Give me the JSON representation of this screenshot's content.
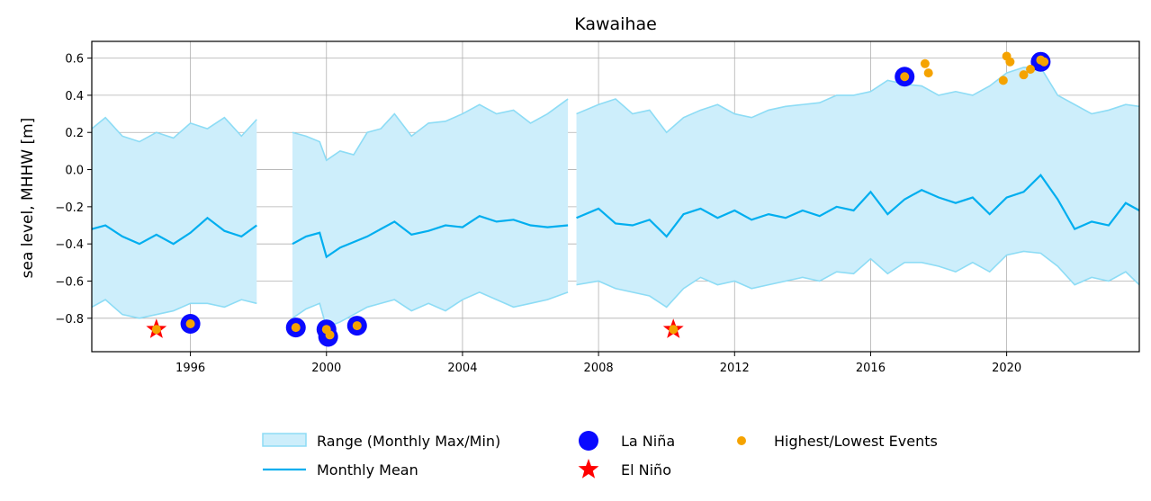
{
  "chart_data": {
    "type": "line",
    "title": "Kawaihae",
    "xlabel": "",
    "ylabel": "sea level, MHHW [m]",
    "xlim": [
      1993.1,
      2023.9
    ],
    "ylim": [
      -0.98,
      0.69
    ],
    "xticks": [
      1996,
      2000,
      2004,
      2008,
      2012,
      2016,
      2020
    ],
    "yticks": [
      0.6,
      0.4,
      0.2,
      0.0,
      -0.2,
      -0.4,
      -0.6,
      -0.8
    ],
    "ytick_labels": [
      "0.6",
      "0.4",
      "0.2",
      "0.0",
      "−0.2",
      "−0.4",
      "−0.6",
      "−0.8"
    ],
    "grid": true,
    "legend_position": "bottom-center",
    "series_colors": {
      "range_fill": "#cdeefb",
      "range_edge": "#8ddcf5",
      "monthly_mean": "#00aeef",
      "la_nina": "#0a0aff",
      "el_nino": "#ff0000",
      "events": "#f5a300"
    },
    "monthly_segments": [
      {
        "x": [
          1993.1,
          1993.5,
          1994.0,
          1994.5,
          1995.0,
          1995.5,
          1996.0,
          1996.5,
          1997.0,
          1997.5,
          1997.95
        ],
        "mean": [
          -0.32,
          -0.3,
          -0.36,
          -0.4,
          -0.35,
          -0.4,
          -0.34,
          -0.26,
          -0.33,
          -0.36,
          -0.3
        ],
        "max": [
          0.22,
          0.28,
          0.18,
          0.15,
          0.2,
          0.17,
          0.25,
          0.22,
          0.28,
          0.18,
          0.27
        ],
        "min": [
          -0.74,
          -0.7,
          -0.78,
          -0.8,
          -0.78,
          -0.76,
          -0.72,
          -0.72,
          -0.74,
          -0.7,
          -0.72
        ]
      },
      {
        "x": [
          1999.0,
          1999.4,
          1999.8,
          2000.0,
          2000.4,
          2000.8,
          2001.2,
          2001.6,
          2002.0,
          2002.5,
          2003.0,
          2003.5,
          2004.0,
          2004.5,
          2005.0,
          2005.5,
          2006.0,
          2006.5,
          2007.1
        ],
        "mean": [
          -0.4,
          -0.36,
          -0.34,
          -0.47,
          -0.42,
          -0.39,
          -0.36,
          -0.32,
          -0.28,
          -0.35,
          -0.33,
          -0.3,
          -0.31,
          -0.25,
          -0.28,
          -0.27,
          -0.3,
          -0.31,
          -0.3
        ],
        "max": [
          0.2,
          0.18,
          0.15,
          0.05,
          0.1,
          0.08,
          0.2,
          0.22,
          0.3,
          0.18,
          0.25,
          0.26,
          0.3,
          0.35,
          0.3,
          0.32,
          0.25,
          0.3,
          0.38
        ],
        "min": [
          -0.8,
          -0.75,
          -0.72,
          -0.85,
          -0.82,
          -0.78,
          -0.74,
          -0.72,
          -0.7,
          -0.76,
          -0.72,
          -0.76,
          -0.7,
          -0.66,
          -0.7,
          -0.74,
          -0.72,
          -0.7,
          -0.66
        ]
      },
      {
        "x": [
          2007.35,
          2008.0,
          2008.5,
          2009.0,
          2009.5,
          2010.0,
          2010.5,
          2011.0,
          2011.5,
          2012.0,
          2012.5,
          2013.0,
          2013.5,
          2014.0,
          2014.5,
          2015.0,
          2015.5,
          2016.0,
          2016.5,
          2017.0,
          2017.5,
          2018.0,
          2018.5,
          2019.0,
          2019.5,
          2020.0,
          2020.5,
          2021.0,
          2021.5,
          2022.0,
          2022.5,
          2023.0,
          2023.5,
          2023.9
        ],
        "mean": [
          -0.26,
          -0.21,
          -0.29,
          -0.3,
          -0.27,
          -0.36,
          -0.24,
          -0.21,
          -0.26,
          -0.22,
          -0.27,
          -0.24,
          -0.26,
          -0.22,
          -0.25,
          -0.2,
          -0.22,
          -0.12,
          -0.24,
          -0.16,
          -0.11,
          -0.15,
          -0.18,
          -0.15,
          -0.24,
          -0.15,
          -0.12,
          -0.03,
          -0.16,
          -0.32,
          -0.28,
          -0.3,
          -0.18,
          -0.22
        ],
        "max": [
          0.3,
          0.35,
          0.38,
          0.3,
          0.32,
          0.2,
          0.28,
          0.32,
          0.35,
          0.3,
          0.28,
          0.32,
          0.34,
          0.35,
          0.36,
          0.4,
          0.4,
          0.42,
          0.48,
          0.46,
          0.45,
          0.4,
          0.42,
          0.4,
          0.45,
          0.52,
          0.55,
          0.55,
          0.4,
          0.35,
          0.3,
          0.32,
          0.35,
          0.34
        ],
        "min": [
          -0.62,
          -0.6,
          -0.64,
          -0.66,
          -0.68,
          -0.74,
          -0.64,
          -0.58,
          -0.62,
          -0.6,
          -0.64,
          -0.62,
          -0.6,
          -0.58,
          -0.6,
          -0.55,
          -0.56,
          -0.48,
          -0.56,
          -0.5,
          -0.5,
          -0.52,
          -0.55,
          -0.5,
          -0.55,
          -0.46,
          -0.44,
          -0.45,
          -0.52,
          -0.62,
          -0.58,
          -0.6,
          -0.55,
          -0.62
        ]
      }
    ],
    "la_nina_points": [
      {
        "x": 1996.0,
        "y": -0.83
      },
      {
        "x": 1999.1,
        "y": -0.85
      },
      {
        "x": 2000.0,
        "y": -0.86
      },
      {
        "x": 2000.05,
        "y": -0.9
      },
      {
        "x": 2000.9,
        "y": -0.84
      },
      {
        "x": 2017.0,
        "y": 0.5
      },
      {
        "x": 2021.0,
        "y": 0.58
      }
    ],
    "el_nino_points": [
      {
        "x": 1995.0,
        "y": -0.86
      },
      {
        "x": 2010.2,
        "y": -0.86
      }
    ],
    "event_points": [
      {
        "x": 1995.0,
        "y": -0.86
      },
      {
        "x": 1996.0,
        "y": -0.83
      },
      {
        "x": 1999.1,
        "y": -0.85
      },
      {
        "x": 2000.0,
        "y": -0.86
      },
      {
        "x": 2000.1,
        "y": -0.89
      },
      {
        "x": 2000.9,
        "y": -0.84
      },
      {
        "x": 2010.2,
        "y": -0.86
      },
      {
        "x": 2017.0,
        "y": 0.5
      },
      {
        "x": 2017.6,
        "y": 0.57
      },
      {
        "x": 2017.7,
        "y": 0.52
      },
      {
        "x": 2019.9,
        "y": 0.48
      },
      {
        "x": 2020.0,
        "y": 0.61
      },
      {
        "x": 2020.1,
        "y": 0.58
      },
      {
        "x": 2020.5,
        "y": 0.51
      },
      {
        "x": 2020.7,
        "y": 0.54
      },
      {
        "x": 2021.0,
        "y": 0.59
      },
      {
        "x": 2021.1,
        "y": 0.58
      }
    ],
    "legend": [
      {
        "label": "Range (Monthly Max/Min)",
        "marker": "band"
      },
      {
        "label": "Monthly Mean",
        "marker": "line"
      },
      {
        "label": "La Niña",
        "marker": "big-circle"
      },
      {
        "label": "El Niño",
        "marker": "star"
      },
      {
        "label": "Highest/Lowest Events",
        "marker": "small-circle"
      }
    ]
  }
}
